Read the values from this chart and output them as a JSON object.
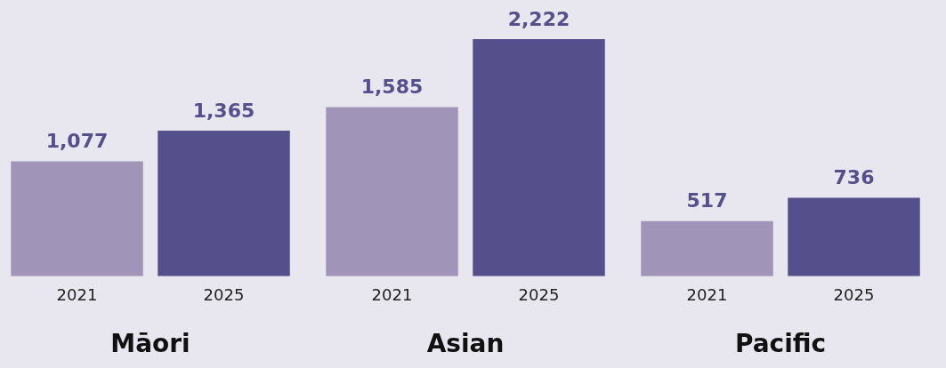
{
  "chart_data": [
    {
      "type": "bar",
      "xlabel": "Māori",
      "categories": [
        "2021",
        "2025"
      ],
      "values": [
        1077,
        1365
      ],
      "value_labels": [
        "1,077",
        "1,365"
      ],
      "colors": [
        "#a095b8",
        "#554f8b"
      ],
      "grid": false,
      "legend": false
    },
    {
      "type": "bar",
      "xlabel": "Asian",
      "categories": [
        "2021",
        "2025"
      ],
      "values": [
        1585,
        2222
      ],
      "value_labels": [
        "1,585",
        "2,222"
      ],
      "colors": [
        "#a095b8",
        "#554f8b"
      ],
      "grid": false,
      "legend": false
    },
    {
      "type": "bar",
      "xlabel": "Pacific",
      "categories": [
        "2021",
        "2025"
      ],
      "values": [
        517,
        736
      ],
      "value_labels": [
        "517",
        "736"
      ],
      "colors": [
        "#a095b8",
        "#554f8b"
      ],
      "grid": false,
      "legend": false
    }
  ]
}
